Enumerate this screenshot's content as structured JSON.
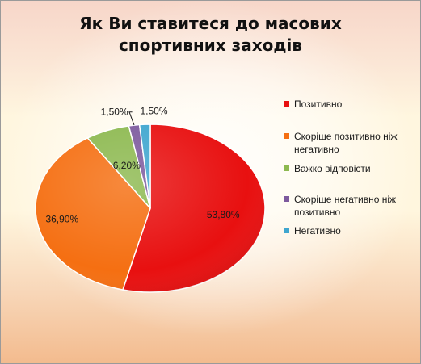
{
  "chart_data": {
    "type": "pie",
    "title_lines": [
      "Як Ви ставитеся до масових",
      "спортивних заходів"
    ],
    "categories": [
      "Позитивно",
      "Скоріше позитивно ніж негативно",
      "Важко відповісти",
      "Скоріше негативно ніж позитивно",
      "Негативно"
    ],
    "values": [
      53.8,
      36.9,
      6.2,
      1.5,
      1.5
    ],
    "value_labels": [
      "53,80%",
      "36,90%",
      "6,20%",
      "1,50%",
      "1,50%"
    ],
    "colors": [
      "#e81010",
      "#f56f12",
      "#8db950",
      "#7d5a9e",
      "#3fa6cf"
    ],
    "start_angle": "12 o'clock",
    "direction": "clockwise",
    "legend_position": "right"
  }
}
